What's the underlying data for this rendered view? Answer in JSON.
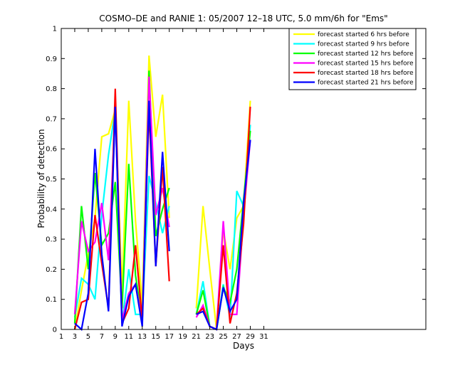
{
  "chart_data": {
    "type": "line",
    "title": "COSMO–DE and RANIE 1: 05/2007 12–18 UTC, 5.0 mm/6h for \"Ems\"",
    "xlabel": "Days",
    "ylabel": "Probability of detection",
    "xlim": [
      1,
      55
    ],
    "ylim": [
      0,
      1
    ],
    "xticks": [
      1,
      3,
      5,
      7,
      9,
      11,
      13,
      15,
      17,
      19,
      21,
      23,
      25,
      27,
      29,
      31
    ],
    "yticks": [
      0,
      0.1,
      0.2,
      0.3,
      0.4,
      0.5,
      0.6,
      0.7,
      0.8,
      0.9,
      1
    ],
    "grid": false,
    "legend_position": "top-right",
    "series": [
      {
        "name": "forecast started 6 hrs before",
        "color": "#ffff00",
        "x": [
          3,
          4,
          5,
          6,
          7,
          8,
          9,
          10,
          11,
          12,
          13,
          14,
          15,
          16,
          17,
          null,
          21,
          22,
          23,
          24,
          25,
          26,
          27,
          28,
          29
        ],
        "values": [
          0.0,
          0.13,
          0.25,
          0.37,
          0.64,
          0.65,
          0.73,
          0.13,
          0.76,
          0.36,
          0.08,
          0.91,
          0.64,
          0.78,
          0.37,
          null,
          0.07,
          0.41,
          0.2,
          0.0,
          0.33,
          0.2,
          0.37,
          0.41,
          0.76
        ]
      },
      {
        "name": "forecast started 9 hrs before",
        "color": "#00ffff",
        "x": [
          3,
          4,
          5,
          6,
          7,
          8,
          9,
          10,
          11,
          12,
          13,
          14,
          15,
          16,
          17,
          null,
          21,
          22,
          23,
          24,
          25,
          26,
          27,
          28,
          29
        ],
        "values": [
          0.04,
          0.17,
          0.15,
          0.1,
          0.38,
          0.58,
          0.73,
          0.02,
          0.2,
          0.05,
          0.05,
          0.51,
          0.42,
          0.32,
          0.41,
          null,
          0.05,
          0.16,
          0.01,
          0.0,
          0.15,
          0.04,
          0.46,
          0.41,
          0.68
        ]
      },
      {
        "name": "forecast started 12 hrs before",
        "color": "#00ff00",
        "x": [
          3,
          4,
          5,
          6,
          7,
          8,
          9,
          10,
          11,
          12,
          13,
          14,
          15,
          16,
          17,
          null,
          21,
          22,
          23,
          24,
          25,
          26,
          27,
          28,
          29
        ],
        "values": [
          0.02,
          0.41,
          0.2,
          0.52,
          0.28,
          0.32,
          0.49,
          0.07,
          0.55,
          0.18,
          0.03,
          0.86,
          0.31,
          0.4,
          0.47,
          null,
          0.05,
          0.13,
          0.01,
          0.0,
          0.14,
          0.09,
          0.2,
          0.43,
          0.66
        ]
      },
      {
        "name": "forecast started 15 hrs before",
        "color": "#ff00ff",
        "x": [
          3,
          4,
          5,
          6,
          7,
          8,
          9,
          10,
          11,
          12,
          13,
          14,
          15,
          16,
          17,
          null,
          21,
          22,
          23,
          24,
          25,
          26,
          27,
          28,
          29
        ],
        "values": [
          0.05,
          0.36,
          0.26,
          0.29,
          0.42,
          0.23,
          0.73,
          0.03,
          0.12,
          0.15,
          0.03,
          0.84,
          0.38,
          0.47,
          0.34,
          null,
          0.04,
          0.08,
          0.01,
          0.0,
          0.36,
          0.05,
          0.05,
          0.38,
          0.63
        ]
      },
      {
        "name": "forecast started 18 hrs before",
        "color": "#ff0000",
        "x": [
          3,
          4,
          5,
          6,
          7,
          8,
          9,
          10,
          11,
          12,
          13,
          14,
          15,
          16,
          17,
          null,
          21,
          22,
          23,
          24,
          25,
          26,
          27,
          28,
          29
        ],
        "values": [
          0.0,
          0.09,
          0.1,
          0.38,
          0.22,
          0.07,
          0.8,
          0.02,
          0.07,
          0.28,
          0.03,
          0.73,
          0.21,
          0.54,
          0.16,
          null,
          0.05,
          0.07,
          0.01,
          0.0,
          0.28,
          0.02,
          0.12,
          0.35,
          0.74
        ]
      },
      {
        "name": "forecast started 21 hrs before",
        "color": "#0000ff",
        "x": [
          3,
          4,
          5,
          6,
          7,
          8,
          9,
          10,
          11,
          12,
          13,
          14,
          15,
          16,
          17,
          null,
          21,
          22,
          23,
          24,
          25,
          26,
          27,
          28,
          29
        ],
        "values": [
          0.02,
          0.0,
          0.12,
          0.6,
          0.25,
          0.06,
          0.74,
          0.01,
          0.11,
          0.15,
          0.01,
          0.76,
          0.21,
          0.59,
          0.26,
          null,
          0.05,
          0.06,
          0.01,
          0.0,
          0.14,
          0.06,
          0.1,
          0.42,
          0.63
        ]
      }
    ]
  }
}
